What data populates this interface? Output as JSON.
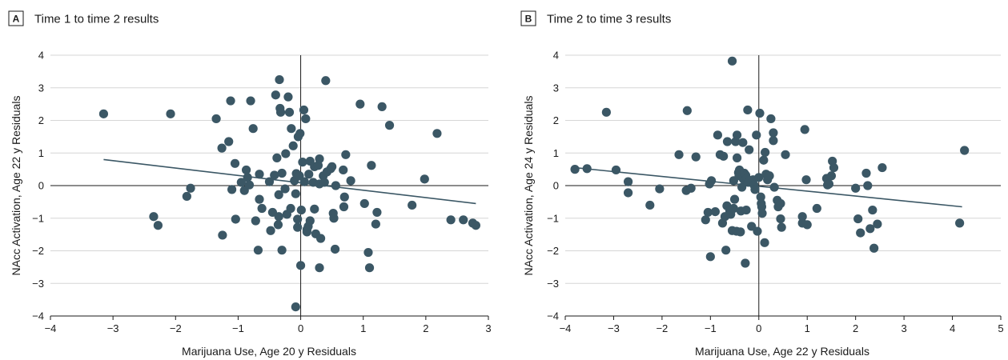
{
  "chart_data": [
    {
      "type": "scatter",
      "panel_label": "A",
      "title": "Time 1 to time 2 results",
      "xlabel": "Marijuana Use, Age 20 y Residuals",
      "ylabel": "NAcc Activation, Age 22 y Residuals",
      "xlim": [
        -4,
        3
      ],
      "ylim": [
        -4,
        4
      ],
      "xticks": [
        "−4",
        "−3",
        "−2",
        "−1",
        "0",
        "1",
        "2",
        "3"
      ],
      "yticks": [
        "4",
        "3",
        "2",
        "1",
        "0",
        "−1",
        "−2",
        "−3",
        "−4"
      ],
      "grid": "horizontal",
      "point_color": "#3b5765",
      "line_color": "#3b5765",
      "fit_line": {
        "x": [
          -3.15,
          2.8
        ],
        "y": [
          0.8,
          -0.55
        ]
      },
      "points": [
        [
          -3.15,
          2.2
        ],
        [
          -2.35,
          -0.95
        ],
        [
          -2.28,
          -1.22
        ],
        [
          -2.08,
          2.2
        ],
        [
          -1.82,
          -0.33
        ],
        [
          -1.76,
          -0.08
        ],
        [
          -1.35,
          2.05
        ],
        [
          -1.26,
          1.15
        ],
        [
          -1.25,
          -1.52
        ],
        [
          -1.15,
          1.35
        ],
        [
          -1.12,
          2.6
        ],
        [
          -1.1,
          -0.12
        ],
        [
          -1.05,
          0.68
        ],
        [
          -1.04,
          -1.03
        ],
        [
          -0.95,
          0.1
        ],
        [
          -0.9,
          -0.15
        ],
        [
          -0.87,
          0.48
        ],
        [
          -0.85,
          0.25
        ],
        [
          -0.82,
          0.02
        ],
        [
          -0.8,
          2.6
        ],
        [
          -0.76,
          1.75
        ],
        [
          -0.72,
          -1.08
        ],
        [
          -0.68,
          -1.98
        ],
        [
          -0.66,
          -0.42
        ],
        [
          -0.66,
          0.35
        ],
        [
          -0.62,
          -0.7
        ],
        [
          -0.5,
          0.12
        ],
        [
          -0.48,
          -1.38
        ],
        [
          -0.45,
          -0.82
        ],
        [
          -0.42,
          0.32
        ],
        [
          -0.4,
          2.78
        ],
        [
          -0.38,
          0.85
        ],
        [
          -0.36,
          -1.2
        ],
        [
          -0.35,
          -0.28
        ],
        [
          -0.35,
          -0.95
        ],
        [
          -0.34,
          3.25
        ],
        [
          -0.33,
          2.37
        ],
        [
          -0.32,
          2.25
        ],
        [
          -0.3,
          0.38
        ],
        [
          -0.3,
          -1.98
        ],
        [
          -0.25,
          -0.1
        ],
        [
          -0.24,
          0.98
        ],
        [
          -0.22,
          -0.88
        ],
        [
          -0.2,
          2.72
        ],
        [
          -0.18,
          2.25
        ],
        [
          -0.16,
          -0.7
        ],
        [
          -0.15,
          1.75
        ],
        [
          -0.12,
          1.22
        ],
        [
          -0.1,
          0.15
        ],
        [
          -0.08,
          -0.25
        ],
        [
          -0.07,
          0.37
        ],
        [
          -0.05,
          -1.03
        ],
        [
          -0.05,
          -1.28
        ],
        [
          -0.04,
          1.5
        ],
        [
          -0.02,
          0.3
        ],
        [
          -0.01,
          1.6
        ],
        [
          0.0,
          -2.45
        ],
        [
          0.01,
          -0.75
        ],
        [
          0.03,
          0.72
        ],
        [
          0.05,
          2.32
        ],
        [
          0.06,
          0.12
        ],
        [
          0.08,
          2.05
        ],
        [
          0.1,
          -1.35
        ],
        [
          0.1,
          -1.42
        ],
        [
          0.12,
          -1.25
        ],
        [
          0.13,
          0.35
        ],
        [
          0.15,
          0.75
        ],
        [
          0.15,
          -1.08
        ],
        [
          0.2,
          0.1
        ],
        [
          0.22,
          0.58
        ],
        [
          0.22,
          -0.72
        ],
        [
          0.24,
          -1.48
        ],
        [
          0.28,
          0.62
        ],
        [
          0.3,
          0.82
        ],
        [
          0.3,
          0.05
        ],
        [
          0.32,
          -1.62
        ],
        [
          0.3,
          -2.52
        ],
        [
          0.36,
          0.3
        ],
        [
          0.38,
          0.1
        ],
        [
          0.4,
          3.22
        ],
        [
          0.42,
          0.42
        ],
        [
          0.48,
          0.52
        ],
        [
          0.5,
          0.58
        ],
        [
          0.52,
          -0.85
        ],
        [
          0.53,
          -1.0
        ],
        [
          0.55,
          -1.95
        ],
        [
          0.56,
          0.0
        ],
        [
          0.68,
          0.48
        ],
        [
          0.69,
          -0.65
        ],
        [
          0.7,
          -0.35
        ],
        [
          0.72,
          0.95
        ],
        [
          0.8,
          0.15
        ],
        [
          0.95,
          2.5
        ],
        [
          1.02,
          -0.55
        ],
        [
          1.08,
          -2.05
        ],
        [
          1.1,
          -2.52
        ],
        [
          1.13,
          0.62
        ],
        [
          1.2,
          -1.18
        ],
        [
          1.22,
          -0.82
        ],
        [
          1.3,
          2.42
        ],
        [
          1.42,
          1.85
        ],
        [
          1.78,
          -0.6
        ],
        [
          1.98,
          0.2
        ],
        [
          2.18,
          1.6
        ],
        [
          2.4,
          -1.05
        ],
        [
          2.6,
          -1.05
        ],
        [
          2.75,
          -1.15
        ],
        [
          2.8,
          -1.22
        ],
        [
          -0.08,
          -3.72
        ]
      ]
    },
    {
      "type": "scatter",
      "panel_label": "B",
      "title": "Time 2 to time 3 results",
      "xlabel": "Marijuana Use, Age 22 y Residuals",
      "ylabel": "NAcc Activation, Age 24 y Residuals",
      "xlim": [
        -4,
        5
      ],
      "ylim": [
        -4,
        4
      ],
      "xticks": [
        "−4",
        "−3",
        "−2",
        "−1",
        "0",
        "1",
        "2",
        "3",
        "4",
        "5"
      ],
      "yticks": [
        "4",
        "3",
        "2",
        "1",
        "0",
        "−1",
        "−2",
        "−3",
        "−4"
      ],
      "grid": "horizontal",
      "point_color": "#3b5765",
      "line_color": "#3b5765",
      "fit_line": {
        "x": [
          -3.8,
          4.2
        ],
        "y": [
          0.55,
          -0.65
        ]
      },
      "points": [
        [
          -3.8,
          0.5
        ],
        [
          -3.55,
          0.52
        ],
        [
          -3.15,
          2.25
        ],
        [
          -2.95,
          0.48
        ],
        [
          -2.7,
          0.12
        ],
        [
          -2.7,
          -0.22
        ],
        [
          -2.25,
          -0.6
        ],
        [
          -2.05,
          -0.1
        ],
        [
          -1.65,
          0.95
        ],
        [
          -1.5,
          -0.15
        ],
        [
          -1.48,
          2.3
        ],
        [
          -1.4,
          -0.08
        ],
        [
          -1.3,
          0.88
        ],
        [
          -1.1,
          -1.05
        ],
        [
          -1.05,
          -0.82
        ],
        [
          -1.02,
          0.05
        ],
        [
          -1.0,
          -2.18
        ],
        [
          -0.98,
          0.15
        ],
        [
          -0.9,
          -0.8
        ],
        [
          -0.85,
          1.55
        ],
        [
          -0.8,
          0.95
        ],
        [
          -0.75,
          -1.15
        ],
        [
          -0.73,
          0.9
        ],
        [
          -0.7,
          -0.95
        ],
        [
          -0.68,
          -1.98
        ],
        [
          -0.66,
          -0.62
        ],
        [
          -0.65,
          1.35
        ],
        [
          -0.6,
          -0.78
        ],
        [
          -0.58,
          -0.88
        ],
        [
          -0.55,
          3.82
        ],
        [
          -0.55,
          -1.38
        ],
        [
          -0.52,
          0.15
        ],
        [
          -0.52,
          -0.7
        ],
        [
          -0.5,
          -0.42
        ],
        [
          -0.48,
          1.35
        ],
        [
          -0.46,
          -1.4
        ],
        [
          -0.45,
          1.55
        ],
        [
          -0.45,
          0.85
        ],
        [
          -0.42,
          0.4
        ],
        [
          -0.41,
          0.3
        ],
        [
          -0.4,
          0.48
        ],
        [
          -0.38,
          -1.42
        ],
        [
          -0.37,
          -0.78
        ],
        [
          -0.35,
          -0.05
        ],
        [
          -0.33,
          1.32
        ],
        [
          -0.32,
          0.2
        ],
        [
          -0.3,
          0.38
        ],
        [
          -0.28,
          -2.38
        ],
        [
          -0.27,
          0.32
        ],
        [
          -0.26,
          -0.75
        ],
        [
          -0.25,
          0.22
        ],
        [
          -0.23,
          2.32
        ],
        [
          -0.22,
          0.1
        ],
        [
          -0.2,
          1.1
        ],
        [
          -0.15,
          -1.25
        ],
        [
          -0.12,
          0.18
        ],
        [
          -0.1,
          0.02
        ],
        [
          -0.08,
          -0.12
        ],
        [
          -0.05,
          1.55
        ],
        [
          -0.03,
          -1.4
        ],
        [
          0.0,
          0.25
        ],
        [
          0.02,
          2.22
        ],
        [
          0.04,
          -0.35
        ],
        [
          0.05,
          -0.55
        ],
        [
          0.06,
          -0.65
        ],
        [
          0.07,
          -0.85
        ],
        [
          0.1,
          0.78
        ],
        [
          0.12,
          -1.75
        ],
        [
          0.13,
          1.02
        ],
        [
          0.15,
          0.35
        ],
        [
          0.18,
          0.18
        ],
        [
          0.22,
          0.3
        ],
        [
          0.25,
          2.05
        ],
        [
          0.3,
          1.62
        ],
        [
          0.3,
          1.38
        ],
        [
          0.32,
          -0.05
        ],
        [
          0.38,
          -0.45
        ],
        [
          0.4,
          -0.65
        ],
        [
          0.45,
          -0.55
        ],
        [
          0.45,
          -1.02
        ],
        [
          0.47,
          -1.28
        ],
        [
          0.55,
          0.95
        ],
        [
          0.9,
          -0.95
        ],
        [
          0.9,
          -1.15
        ],
        [
          0.95,
          1.72
        ],
        [
          0.98,
          0.18
        ],
        [
          1.0,
          -1.2
        ],
        [
          1.2,
          -0.7
        ],
        [
          1.4,
          0.22
        ],
        [
          1.42,
          0.02
        ],
        [
          1.45,
          0.05
        ],
        [
          1.5,
          0.3
        ],
        [
          1.52,
          0.75
        ],
        [
          1.55,
          0.55
        ],
        [
          2.0,
          -0.08
        ],
        [
          2.05,
          -1.02
        ],
        [
          2.1,
          -1.45
        ],
        [
          2.22,
          0.38
        ],
        [
          2.25,
          0.0
        ],
        [
          2.3,
          -1.32
        ],
        [
          2.35,
          -0.75
        ],
        [
          2.38,
          -1.92
        ],
        [
          2.45,
          -1.18
        ],
        [
          2.55,
          0.55
        ],
        [
          4.15,
          -1.15
        ],
        [
          4.25,
          1.08
        ]
      ]
    }
  ]
}
